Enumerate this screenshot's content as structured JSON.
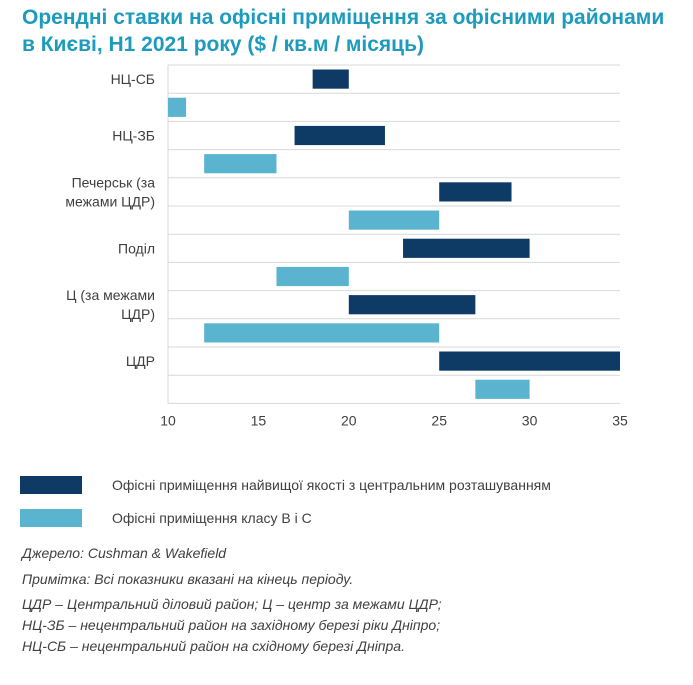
{
  "title": "Орендні ставки на офісні приміщення за офісними районами в Києві, H1 2021 року ($ / кв.м / місяць)",
  "chart_data": {
    "type": "bar",
    "orientation": "horizontal-range",
    "title": "Орендні ставки на офісні приміщення за офісними районами в Києві, H1 2021 року ($ / кв.м / місяць)",
    "xlim": [
      10,
      35
    ],
    "xticks": [
      "10",
      "15",
      "20",
      "25",
      "30",
      "35"
    ],
    "grid": "horizontal",
    "categories": [
      {
        "label": "НЦ-СБ",
        "lines": [
          "НЦ-СБ"
        ]
      },
      {
        "label": "НЦ-ЗБ",
        "lines": [
          "НЦ-ЗБ"
        ]
      },
      {
        "label": "Печерськ (за межами ЦДР)",
        "lines": [
          "Печерськ (за",
          "межами ЦДР)"
        ]
      },
      {
        "label": "Поділ",
        "lines": [
          "Поділ"
        ]
      },
      {
        "label": "Ц (за межами ЦДР)",
        "lines": [
          "Ц (за межами",
          "ЦДР)"
        ]
      },
      {
        "label": "ЦДР",
        "lines": [
          "ЦДР"
        ]
      }
    ],
    "series": [
      {
        "name": "Офісні приміщення найвищої якості з центральним розташуванням",
        "color": "#0d3b66",
        "ranges": [
          [
            18,
            20
          ],
          [
            17,
            22
          ],
          [
            25,
            29
          ],
          [
            23,
            30
          ],
          [
            20,
            27
          ],
          [
            25,
            35
          ]
        ]
      },
      {
        "name": "Офісні приміщення класу B і C",
        "color": "#5ab4d0",
        "ranges": [
          [
            10,
            11
          ],
          [
            12,
            16
          ],
          [
            20,
            25
          ],
          [
            16,
            20
          ],
          [
            12,
            25
          ],
          [
            27,
            30
          ]
        ]
      }
    ]
  },
  "legend": [
    {
      "label": "Офісні приміщення найвищої якості з центральним розташуванням",
      "color": "#0d3b66"
    },
    {
      "label": "Офісні приміщення класу B і C",
      "color": "#5ab4d0"
    }
  ],
  "notes": {
    "source": "Джерело: Cushman & Wakefield",
    "note": "Примітка: Всі показники вказані на кінець періоду.",
    "definitions": [
      "ЦДР – Центральний діловий район; Ц – центр за межами ЦДР;",
      "НЦ-ЗБ – нецентральний район на західному березі ріки Дніпро;",
      "НЦ-СБ – нецентральний район на східному березі Дніпра."
    ]
  }
}
